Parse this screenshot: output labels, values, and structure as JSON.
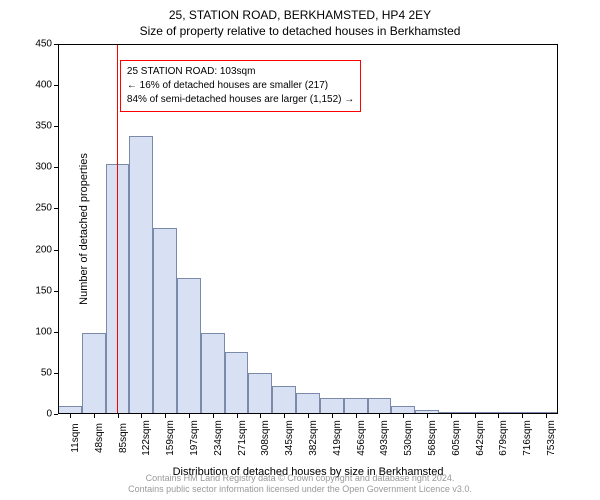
{
  "title_main": "25, STATION ROAD, BERKHAMSTED, HP4 2EY",
  "title_sub": "Size of property relative to detached houses in Berkhamsted",
  "ylabel": "Number of detached properties",
  "xlabel": "Distribution of detached houses by size in Berkhamsted",
  "chart": {
    "type": "histogram",
    "ylim": [
      0,
      450
    ],
    "ytick_step": 50,
    "xtick_labels": [
      "11sqm",
      "48sqm",
      "85sqm",
      "122sqm",
      "159sqm",
      "197sqm",
      "234sqm",
      "271sqm",
      "308sqm",
      "345sqm",
      "382sqm",
      "419sqm",
      "456sqm",
      "493sqm",
      "530sqm",
      "568sqm",
      "605sqm",
      "642sqm",
      "679sqm",
      "716sqm",
      "753sqm"
    ],
    "values": [
      10,
      98,
      304,
      338,
      226,
      166,
      98,
      75,
      50,
      34,
      25,
      20,
      20,
      20,
      10,
      5,
      3,
      3,
      3,
      2,
      2
    ],
    "bar_fill": "#d8e1f3",
    "bar_stroke": "#7a8aa8",
    "marker_color": "#ff0000",
    "marker_x_index": 2.48,
    "background_color": "#ffffff",
    "axis_color": "#000000"
  },
  "annotation": {
    "lines": [
      "25 STATION ROAD: 103sqm",
      "← 16% of detached houses are smaller (217)",
      "84% of semi-detached houses are larger (1,152) →"
    ],
    "box_border": "#ff0000",
    "left_index": 2.6,
    "top_value": 430
  },
  "footer": {
    "line1": "Contains HM Land Registry data © Crown copyright and database right 2024.",
    "line2": "Contains public sector information licensed under the Open Government Licence v3.0.",
    "color": "#999999"
  }
}
